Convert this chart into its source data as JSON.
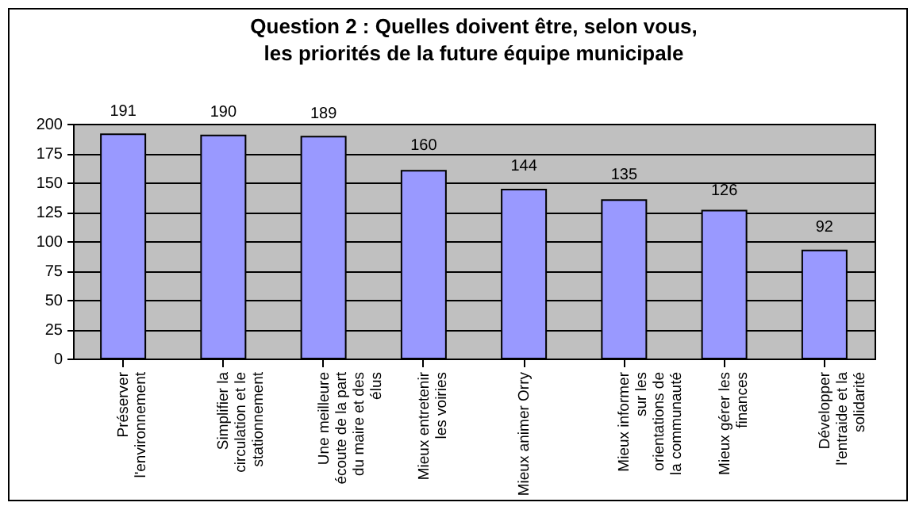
{
  "chart_data": {
    "type": "bar",
    "title": "Question 2 : Quelles doivent être, selon vous, les priorités de la future équipe municipale",
    "categories": [
      "Préserver l'environnement",
      "Simplifier la circulation et le stationnement",
      "Une meilleure écoute de la part du maire et des élus",
      "Mieux entretenir les voiries",
      "Mieux animer Orry",
      "Mieux informer sur les orientations de la communauté",
      "Mieux gérer les finances",
      "Développer l'entraide et la solidarité"
    ],
    "values": [
      191,
      190,
      189,
      160,
      144,
      135,
      126,
      92
    ],
    "color": "#9999ff",
    "ylim": [
      0,
      200
    ],
    "yticks": [
      0,
      25,
      50,
      75,
      100,
      125,
      150,
      175,
      200
    ],
    "grid": "y",
    "data_labels": true
  }
}
